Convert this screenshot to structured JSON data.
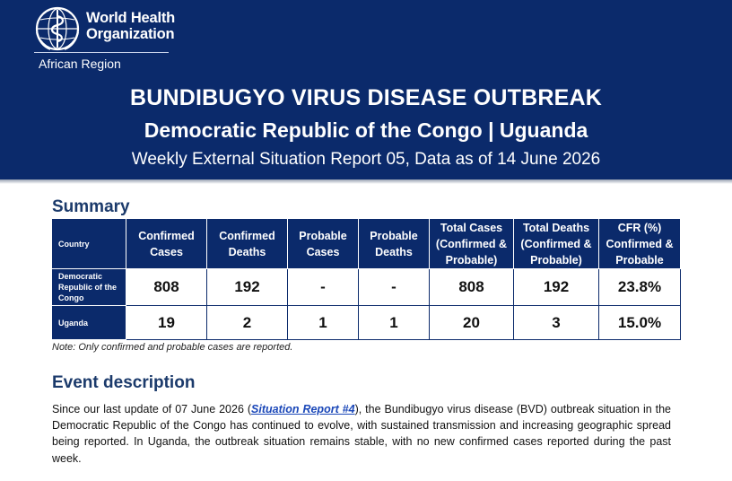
{
  "header": {
    "org_name": "World Health Organization",
    "region": "African Region",
    "title": "BUNDIBUGYO VIRUS DISEASE OUTBREAK",
    "subtitle": "Democratic Republic of the Congo | Uguanda",
    "report_line": "Weekly External Situation Report 05, Data as of 14 June 2026",
    "colors": {
      "banner": "#0b2a6b",
      "heading": "#1b3a6b",
      "link": "#1a47b8"
    },
    "emblem_icon": "who-emblem-icon"
  },
  "summary": {
    "heading": "Summary",
    "columns": [
      "Country",
      "Confirmed Cases",
      "Confirmed Deaths",
      "Probable Cases",
      "Probable Deaths",
      "Total Cases (Confirmed & Probable)",
      "Total Deaths (Confirmed & Probable)",
      "CFR (%) Confirmed & Probable"
    ],
    "rows": [
      {
        "country": "Democratic Republic of the Congo",
        "confirmed_cases": "808",
        "confirmed_deaths": "192",
        "probable_cases": "-",
        "probable_deaths": "-",
        "total_cases": "808",
        "total_deaths": "192",
        "cfr": "23.8%"
      },
      {
        "country": "Uganda",
        "confirmed_cases": "19",
        "confirmed_deaths": "2",
        "probable_cases": "1",
        "probable_deaths": "1",
        "total_cases": "20",
        "total_deaths": "3",
        "cfr": "15.0%"
      }
    ],
    "note": "Note: Only confirmed and probable cases are reported."
  },
  "event": {
    "heading": "Event description",
    "text_before_link": "Since our last update of 07 June 2026 (",
    "link_text": "Situation Report #4",
    "text_after_link": "), the Bundibugyo virus disease (BVD) outbreak situation in the Democratic Republic of the Congo has continued to evolve, with sustained transmission and increasing geographic spread being reported. In Uganda, the outbreak situation remains stable, with no new confirmed cases reported during the past week."
  }
}
